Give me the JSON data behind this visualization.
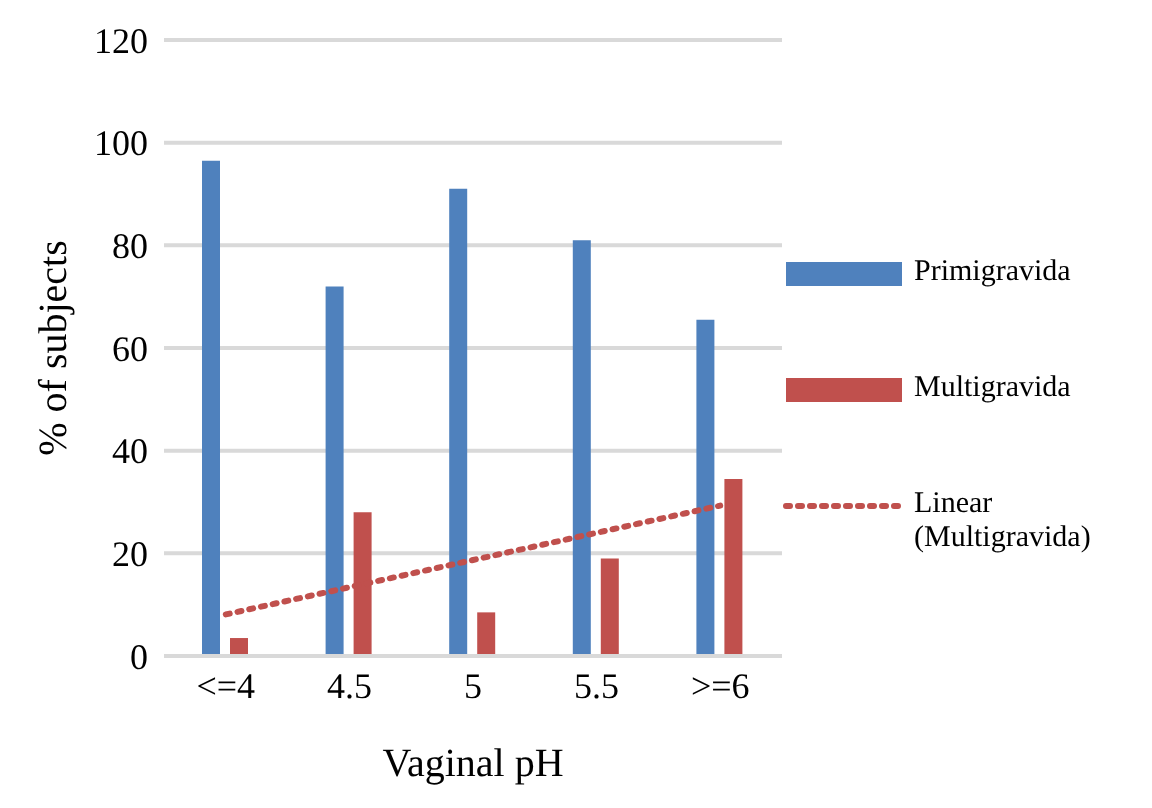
{
  "chart_data": {
    "type": "bar",
    "xlabel": "Vaginal pH",
    "ylabel": "% of subjects",
    "categories": [
      "<=4",
      "4.5",
      "5",
      "5.5",
      ">=6"
    ],
    "series": [
      {
        "name": "Primigravida",
        "color": "#4f81bd",
        "values": [
          96.5,
          72,
          91,
          81,
          65.5
        ]
      },
      {
        "name": "Multigravida",
        "color": "#c0504d",
        "values": [
          3.5,
          28,
          8.5,
          19,
          34.5
        ]
      },
      {
        "name": "Linear (Multigravida)",
        "type": "line",
        "color": "#c0504d",
        "line_style": "dotted",
        "values": [
          8.1,
          13.4,
          18.7,
          24,
          29.3
        ]
      }
    ],
    "ylim": [
      0,
      120
    ],
    "yticks": [
      0,
      20,
      40,
      60,
      80,
      100,
      120
    ],
    "grid": "y",
    "legend": "right"
  }
}
